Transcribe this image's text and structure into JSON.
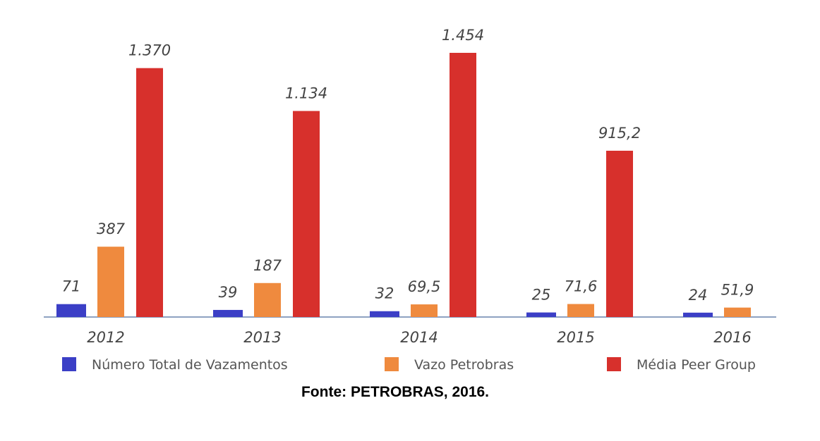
{
  "chart_data": {
    "type": "bar",
    "categories": [
      "2012",
      "2013",
      "2014",
      "2015",
      "2016"
    ],
    "series": [
      {
        "name": "Número Total de Vazamentos",
        "color": "#3b3fc6",
        "values": [
          71,
          39,
          32,
          25,
          24
        ],
        "value_labels": [
          "71",
          "39",
          "32",
          "25",
          "24"
        ]
      },
      {
        "name": "Vazo Petrobras",
        "color": "#ef8a3e",
        "values": [
          387,
          187,
          69.5,
          71.6,
          51.9
        ],
        "value_labels": [
          "387",
          "187",
          "69,5",
          "71,6",
          "51,9"
        ]
      },
      {
        "name": "Média Peer Group",
        "color": "#d7302c",
        "values": [
          1370,
          1134,
          1454,
          915.2,
          null
        ],
        "value_labels": [
          "1.370",
          "1.134",
          "1.454",
          "915,2",
          null
        ]
      }
    ],
    "source": "Fonte: PETROBRAS, 2016."
  }
}
